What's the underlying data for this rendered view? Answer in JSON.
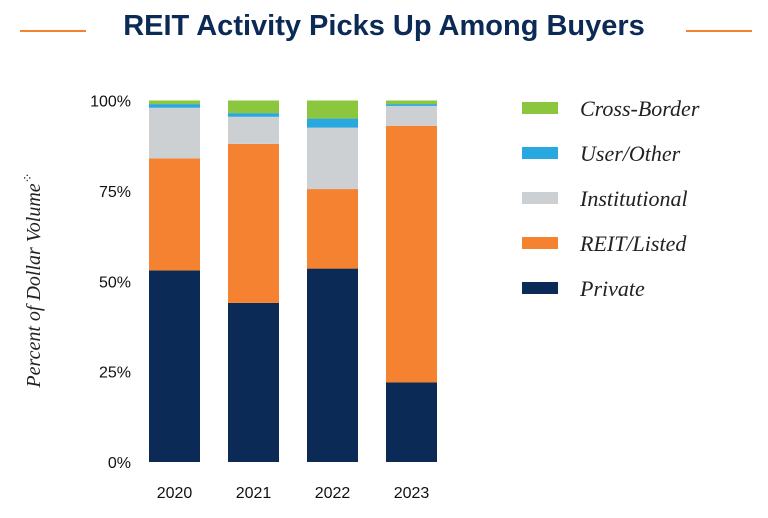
{
  "chart_data": {
    "type": "bar",
    "stacked": true,
    "title": "REIT Activity Picks Up Among Buyers",
    "xlabel": "",
    "ylabel": "Percent of Dollar Volume",
    "ylabel_marker": "⁘",
    "ylim": [
      0,
      100
    ],
    "yticks": [
      "0%",
      "25%",
      "50%",
      "75%",
      "100%"
    ],
    "categories": [
      "2020",
      "2021",
      "2022",
      "2023"
    ],
    "series": [
      {
        "name": "Private",
        "color": "#0b2a55",
        "values": [
          53,
          44,
          53.5,
          22
        ]
      },
      {
        "name": "REIT/Listed",
        "color": "#f58231",
        "values": [
          31,
          44,
          22,
          71
        ]
      },
      {
        "name": "Institutional",
        "color": "#cdd0d3",
        "values": [
          14,
          7.5,
          17,
          5.5
        ]
      },
      {
        "name": "User/Other",
        "color": "#29a8e0",
        "values": [
          1,
          1,
          2.5,
          0.5
        ]
      },
      {
        "name": "Cross-Border",
        "color": "#8cc63f",
        "values": [
          1,
          3.5,
          5,
          1
        ]
      }
    ],
    "legend_position": "right",
    "grid": false
  },
  "accent_color": "#f58231"
}
